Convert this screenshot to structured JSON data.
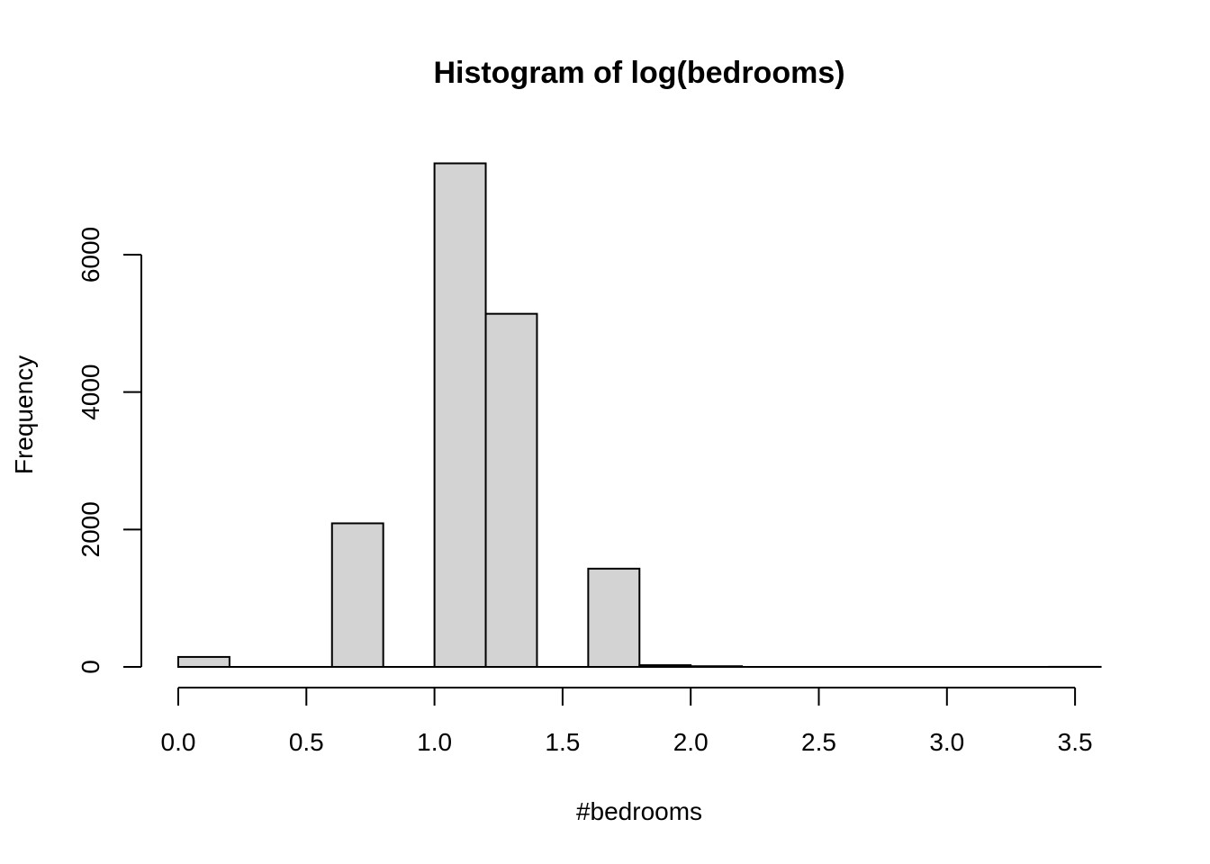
{
  "chart_data": {
    "type": "bar",
    "title": "Histogram of log(bedrooms)",
    "xlabel": "#bedrooms",
    "ylabel": "Frequency",
    "xlim": [
      0,
      3.6
    ],
    "ylim": [
      0,
      7300
    ],
    "x_ticks": [
      "0.0",
      "0.5",
      "1.0",
      "1.5",
      "2.0",
      "2.5",
      "3.0",
      "3.5"
    ],
    "y_ticks": [
      "0",
      "2000",
      "4000",
      "6000"
    ],
    "bins": [
      {
        "x0": 0.0,
        "x1": 0.2,
        "count": 145
      },
      {
        "x0": 0.2,
        "x1": 0.4,
        "count": 0
      },
      {
        "x0": 0.4,
        "x1": 0.6,
        "count": 0
      },
      {
        "x0": 0.6,
        "x1": 0.8,
        "count": 2090
      },
      {
        "x0": 0.8,
        "x1": 1.0,
        "count": 0
      },
      {
        "x0": 1.0,
        "x1": 1.2,
        "count": 7330
      },
      {
        "x0": 1.2,
        "x1": 1.4,
        "count": 5140
      },
      {
        "x0": 1.4,
        "x1": 1.6,
        "count": 0
      },
      {
        "x0": 1.6,
        "x1": 1.8,
        "count": 1430
      },
      {
        "x0": 1.8,
        "x1": 2.0,
        "count": 25
      },
      {
        "x0": 2.0,
        "x1": 2.2,
        "count": 10
      },
      {
        "x0": 2.2,
        "x1": 2.4,
        "count": 0
      },
      {
        "x0": 2.4,
        "x1": 2.6,
        "count": 0
      },
      {
        "x0": 2.6,
        "x1": 2.8,
        "count": 0
      },
      {
        "x0": 2.8,
        "x1": 3.0,
        "count": 0
      },
      {
        "x0": 3.0,
        "x1": 3.2,
        "count": 0
      },
      {
        "x0": 3.2,
        "x1": 3.4,
        "count": 0
      },
      {
        "x0": 3.4,
        "x1": 3.6,
        "count": 1
      }
    ],
    "bar_fill": "#d3d3d3",
    "bar_stroke": "#000000",
    "grid": false,
    "legend": "none"
  }
}
